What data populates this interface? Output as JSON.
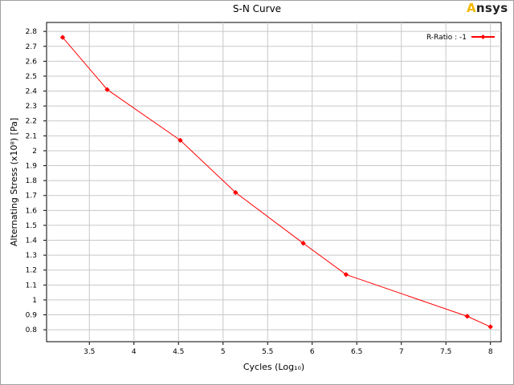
{
  "brand": {
    "logo_text": "Ansys",
    "accent_color": "#f5b800"
  },
  "chart_data": {
    "type": "line",
    "title": "S-N Curve",
    "xlabel": "Cycles  (Log₁₀)",
    "ylabel": "Alternating Stress  (x10⁸)  [Pa]",
    "xlim": [
      3.02,
      8.12
    ],
    "ylim": [
      0.72,
      2.86
    ],
    "x_ticks": [
      "3.5",
      "4",
      "4.5",
      "5",
      "5.5",
      "6",
      "6.5",
      "7",
      "7.5",
      "8"
    ],
    "y_ticks": [
      "0.8",
      "0.9",
      "1",
      "1.1",
      "1.2",
      "1.3",
      "1.4",
      "1.5",
      "1.6",
      "1.7",
      "1.8",
      "1.9",
      "2",
      "2.1",
      "2.2",
      "2.3",
      "2.4",
      "2.5",
      "2.6",
      "2.7",
      "2.8"
    ],
    "grid": true,
    "legend_position": "top-right",
    "series": [
      {
        "name": "R-Ratio : -1",
        "color": "#ff0000",
        "marker": "diamond",
        "x": [
          3.2,
          3.7,
          4.52,
          5.14,
          5.9,
          6.38,
          7.74,
          8.0
        ],
        "y": [
          2.76,
          2.41,
          2.07,
          1.72,
          1.38,
          1.17,
          0.89,
          0.82
        ]
      }
    ]
  }
}
